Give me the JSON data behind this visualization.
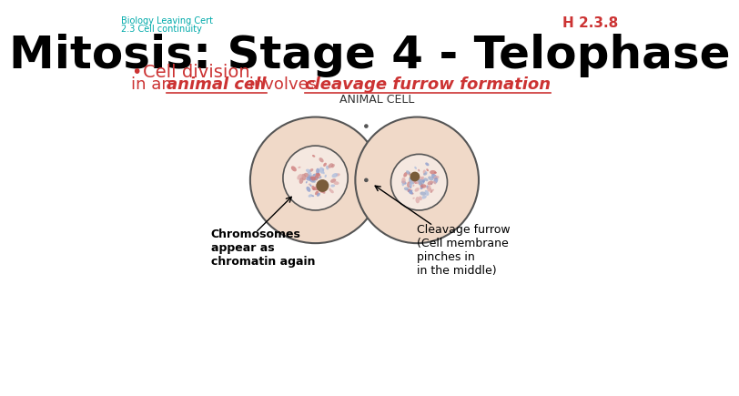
{
  "bg_color": "#ffffff",
  "top_left_line1": "Biology Leaving Cert",
  "top_left_line2": "2.3 Cell continuity",
  "top_left_color": "#00aaaa",
  "top_right_text": "H 2.3.8",
  "top_right_color": "#cc3333",
  "title": "Mitosis: Stage 4 - Telophase",
  "title_color": "#000000",
  "title_fontsize": 36,
  "bullet_text": "Cell division",
  "bullet_color": "#cc3333",
  "body_color": "#cc3333",
  "diagram_label": "ANIMAL CELL",
  "label_left": "Chromosomes\nappear as\nchromatin again",
  "label_right": "Cleavage furrow\n(Cell membrane\npinches in\nin the middle)",
  "cell_outer_color": "#f0d9c8",
  "cell_border_color": "#555555",
  "nucleolus_color": "#7a5c3a"
}
